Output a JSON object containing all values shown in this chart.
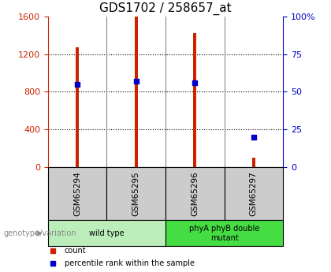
{
  "title": "GDS1702 / 258657_at",
  "samples": [
    "GSM65294",
    "GSM65295",
    "GSM65296",
    "GSM65297"
  ],
  "counts": [
    1270,
    1595,
    1420,
    105
  ],
  "percentile_ranks": [
    55,
    57,
    56,
    20
  ],
  "left_ylim": [
    0,
    1600
  ],
  "right_ylim": [
    0,
    100
  ],
  "left_yticks": [
    0,
    400,
    800,
    1200,
    1600
  ],
  "right_yticks": [
    0,
    25,
    50,
    75,
    100
  ],
  "right_yticklabels": [
    "0",
    "25",
    "50",
    "75",
    "100%"
  ],
  "bar_color": "#cc2200",
  "dot_color": "#0000cc",
  "left_tick_color": "#cc2200",
  "right_tick_color": "#0000cc",
  "title_fontsize": 11,
  "groups": [
    {
      "label": "wild type",
      "samples": [
        0,
        1
      ],
      "color": "#bbeebb"
    },
    {
      "label": "phyA phyB double\nmutant",
      "samples": [
        2,
        3
      ],
      "color": "#44dd44"
    }
  ],
  "genotype_label": "genotype/variation",
  "legend_items": [
    {
      "color": "#cc2200",
      "label": "count"
    },
    {
      "color": "#0000cc",
      "label": "percentile rank within the sample"
    }
  ],
  "grid_color": "#000000",
  "background_color": "#ffffff",
  "cell_bg_color": "#cccccc",
  "bar_width": 0.05
}
